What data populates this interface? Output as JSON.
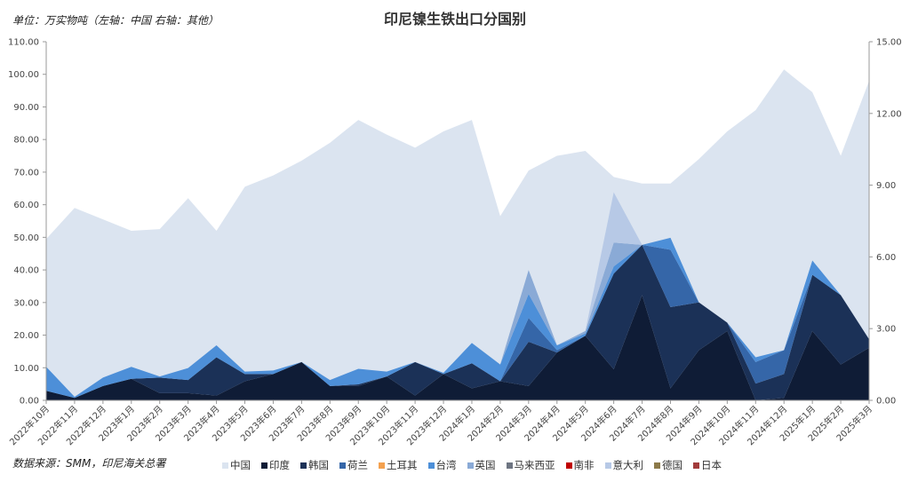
{
  "title": "印尼镍生铁出口分国别",
  "unit_note": "单位：万实物吨（左轴：中国  右轴：其他）",
  "source_note": "数据来源：SMM，印尼海关总署",
  "chart_data": {
    "type": "area",
    "title": "印尼镍生铁出口分国别",
    "categories": [
      "2022年10月",
      "2022年11月",
      "2022年12月",
      "2023年1月",
      "2023年2月",
      "2023年3月",
      "2023年4月",
      "2023年5月",
      "2023年6月",
      "2023年7月",
      "2023年8月",
      "2023年9月",
      "2023年10月",
      "2023年11月",
      "2023年12月",
      "2024年1月",
      "2024年2月",
      "2024年3月",
      "2024年4月",
      "2024年5月",
      "2024年6月",
      "2024年7月",
      "2024年8月",
      "2024年9月",
      "2024年10月",
      "2024年11月",
      "2024年12月",
      "2025年1月",
      "2025年2月",
      "2025年3月"
    ],
    "left_axis": {
      "min": 0,
      "max": 110,
      "step": 10,
      "ticks": [
        "0.00",
        "10.00",
        "20.00",
        "30.00",
        "40.00",
        "50.00",
        "60.00",
        "70.00",
        "80.00",
        "90.00",
        "100.00",
        "110.00"
      ]
    },
    "right_axis": {
      "min": 0,
      "max": 15,
      "step": 3,
      "ticks": [
        "0.00",
        "3.00",
        "6.00",
        "9.00",
        "12.00",
        "15.00"
      ]
    },
    "grid": false,
    "legend_position": "bottom",
    "series": [
      {
        "name": "中国",
        "axis": "left",
        "color": "#dbe4f0",
        "values": [
          49.5,
          59.0,
          55.5,
          52.0,
          52.5,
          62.0,
          52.0,
          65.5,
          69.0,
          73.5,
          79.0,
          86.0,
          81.5,
          77.5,
          82.5,
          86.0,
          56.5,
          70.5,
          75.0,
          76.5,
          68.5,
          66.5,
          66.5,
          74.0,
          82.5,
          89.0,
          101.5,
          94.5,
          75.0,
          98.0
        ]
      },
      {
        "name": "印度",
        "axis": "right",
        "color": "#0f1c36",
        "values": [
          0.4,
          0.1,
          0.6,
          0.9,
          0.3,
          0.3,
          0.2,
          0.8,
          1.1,
          1.6,
          0.6,
          0.6,
          1.0,
          0.2,
          1.1,
          0.5,
          0.8,
          0.6,
          2.0,
          2.7,
          1.3,
          4.4,
          0.5,
          2.1,
          2.9,
          0.0,
          0.1,
          2.9,
          1.5,
          2.2
        ]
      },
      {
        "name": "韩国",
        "axis": "right",
        "color": "#1b3157",
        "values": [
          0.0,
          0.0,
          0.0,
          0.0,
          0.65,
          0.55,
          1.6,
          0.3,
          0.0,
          0.0,
          0.0,
          0.07,
          0.0,
          1.4,
          0.0,
          1.05,
          0.0,
          1.85,
          0.0,
          0.0,
          4.0,
          2.1,
          3.4,
          2.0,
          0.35,
          0.7,
          1.0,
          2.35,
          2.9,
          0.35
        ]
      },
      {
        "name": "荷兰",
        "axis": "right",
        "color": "#3566a8",
        "values": [
          0.0,
          0.0,
          0.0,
          0.0,
          0.0,
          0.0,
          0.0,
          0.0,
          0.0,
          0.0,
          0.0,
          0.0,
          0.0,
          0.0,
          0.0,
          0.0,
          0.0,
          1.0,
          0.1,
          0.0,
          0.0,
          0.0,
          2.4,
          0.0,
          0.0,
          0.9,
          1.0,
          0.0,
          0.0,
          0.0
        ]
      },
      {
        "name": "土耳其",
        "axis": "right",
        "color": "#f4a14f",
        "values": [
          0,
          0,
          0,
          0,
          0,
          0,
          0,
          0,
          0,
          0,
          0,
          0,
          0,
          0,
          0,
          0,
          0,
          0,
          0,
          0,
          0,
          0,
          0,
          0,
          0,
          0,
          0,
          0,
          0,
          0
        ]
      },
      {
        "name": "台湾",
        "axis": "right",
        "color": "#4d8fd8",
        "values": [
          1.0,
          0.05,
          0.35,
          0.5,
          0.05,
          0.5,
          0.5,
          0.1,
          0.15,
          0.0,
          0.25,
          0.65,
          0.2,
          0.0,
          0.05,
          0.85,
          0.7,
          1.0,
          0.2,
          0.1,
          0.3,
          0.0,
          0.5,
          0.0,
          0.0,
          0.2,
          0.0,
          0.6,
          0.0,
          0.0
        ]
      },
      {
        "name": "英国",
        "axis": "right",
        "color": "#8aaad6",
        "values": [
          0.0,
          0.0,
          0.0,
          0.0,
          0.0,
          0.0,
          0.0,
          0.0,
          0.0,
          0.0,
          0.0,
          0.0,
          0.0,
          0.0,
          0.0,
          0.0,
          0.0,
          1.0,
          0.0,
          0.1,
          1.0,
          0.0,
          0.0,
          0.0,
          0.0,
          0.0,
          0.0,
          0.0,
          0.0,
          0.0
        ]
      },
      {
        "name": "马来西亚",
        "axis": "right",
        "color": "#6e7582",
        "values": [
          0,
          0,
          0,
          0,
          0,
          0,
          0,
          0,
          0,
          0,
          0,
          0,
          0,
          0,
          0,
          0,
          0,
          0,
          0,
          0,
          0,
          0,
          0,
          0,
          0,
          0,
          0,
          0,
          0,
          0
        ]
      },
      {
        "name": "南非",
        "axis": "right",
        "color": "#c00000",
        "values": [
          0,
          0,
          0,
          0,
          0,
          0,
          0,
          0,
          0,
          0,
          0,
          0,
          0,
          0,
          0,
          0,
          0,
          0,
          0,
          0,
          0,
          0,
          0,
          0,
          0,
          0,
          0,
          0,
          0,
          0
        ]
      },
      {
        "name": "意大利",
        "axis": "right",
        "color": "#b7c9e6",
        "values": [
          0.0,
          0.0,
          0.0,
          0.0,
          0.0,
          0.0,
          0.0,
          0.0,
          0.0,
          0.0,
          0.0,
          0.0,
          0.0,
          0.0,
          0.0,
          0.0,
          0.0,
          0.0,
          0.0,
          0.0,
          2.1,
          0.0,
          0.0,
          0.0,
          0.0,
          0.0,
          0.0,
          0.0,
          0.0,
          0.0
        ]
      },
      {
        "name": "德国",
        "axis": "right",
        "color": "#8c7a4a",
        "values": [
          0,
          0,
          0,
          0,
          0,
          0,
          0,
          0,
          0,
          0,
          0,
          0,
          0,
          0,
          0,
          0,
          0,
          0,
          0,
          0,
          0,
          0,
          0,
          0,
          0,
          0,
          0,
          0,
          0,
          0
        ]
      },
      {
        "name": "日本",
        "axis": "right",
        "color": "#a23b3b",
        "values": [
          0,
          0,
          0,
          0,
          0,
          0,
          0,
          0,
          0,
          0,
          0,
          0,
          0,
          0,
          0,
          0,
          0,
          0,
          0,
          0,
          0,
          0,
          0,
          0,
          0,
          0,
          0,
          0,
          0,
          0
        ]
      }
    ]
  }
}
